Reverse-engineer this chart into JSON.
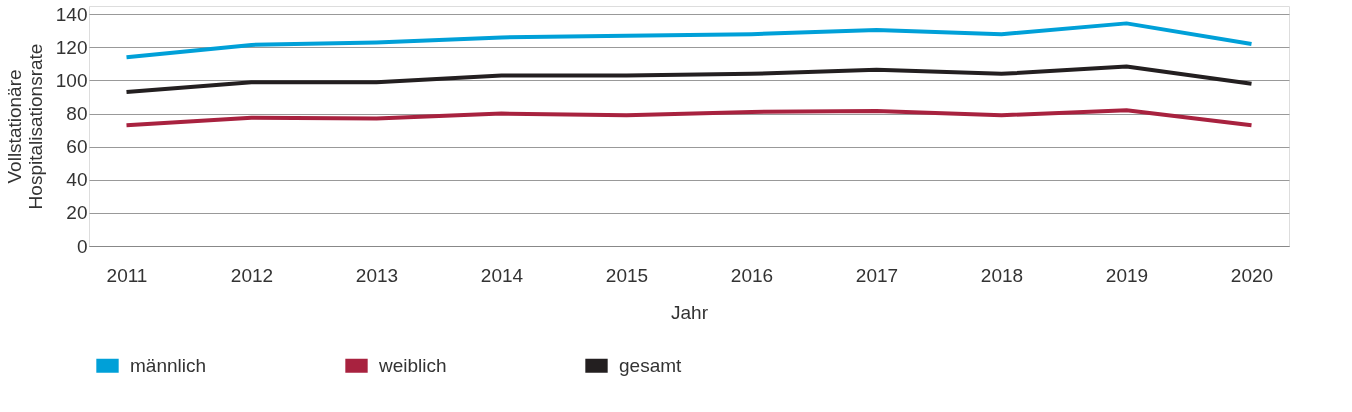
{
  "chart_data": {
    "type": "line",
    "xlabel": "Jahr",
    "ylabel": "Vollstationäre Hospitalisationsrate",
    "categories": [
      "2011",
      "2012",
      "2013",
      "2014",
      "2015",
      "2016",
      "2017",
      "2018",
      "2019",
      "2020"
    ],
    "series": [
      {
        "name": "männlich",
        "color": "#00a0d8",
        "values": [
          114,
          121.5,
          123,
          126,
          127,
          128,
          130.5,
          128,
          134.5,
          122
        ]
      },
      {
        "name": "weiblich",
        "color": "#a8223f",
        "values": [
          73,
          77.5,
          77,
          80,
          79,
          81,
          81.5,
          79,
          82,
          73
        ]
      },
      {
        "name": "gesamt",
        "color": "#231f20",
        "values": [
          93,
          99,
          99,
          103,
          103,
          104,
          106.5,
          104,
          108.5,
          98
        ]
      }
    ],
    "ylim": [
      0,
      145
    ],
    "yticks": [
      0,
      20,
      40,
      60,
      80,
      100,
      120,
      140
    ],
    "grid": "y",
    "legend": "bottom",
    "line_style": "solid",
    "marker": "none"
  }
}
